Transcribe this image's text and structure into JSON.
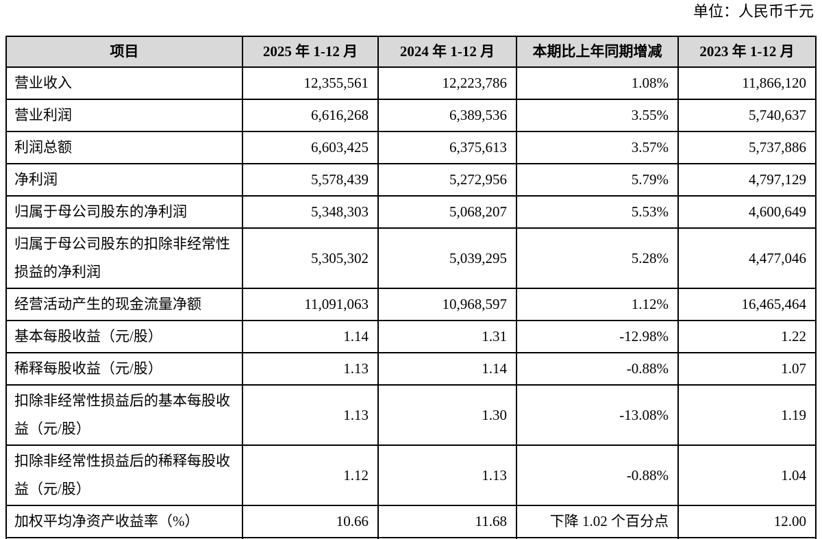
{
  "unit_label": "单位：人民币千元",
  "colors": {
    "header_bg": "#d9d9d9",
    "border": "#000000",
    "text": "#000000"
  },
  "table": {
    "headers": {
      "item": "项目",
      "y2025": "2025 年 1-12 月",
      "y2024": "2024 年 1-12 月",
      "change": "本期比上年同期增减",
      "y2023": "2023 年 1-12 月"
    },
    "rows": [
      {
        "item": "营业收入",
        "y2025": "12,355,561",
        "y2024": "12,223,786",
        "change": "1.08%",
        "y2023": "11,866,120"
      },
      {
        "item": "营业利润",
        "y2025": "6,616,268",
        "y2024": "6,389,536",
        "change": "3.55%",
        "y2023": "5,740,637"
      },
      {
        "item": "利润总额",
        "y2025": "6,603,425",
        "y2024": "6,375,613",
        "change": "3.57%",
        "y2023": "5,737,886"
      },
      {
        "item": "净利润",
        "y2025": "5,578,439",
        "y2024": "5,272,956",
        "change": "5.79%",
        "y2023": "4,797,129"
      },
      {
        "item": "归属于母公司股东的净利润",
        "y2025": "5,348,303",
        "y2024": "5,068,207",
        "change": "5.53%",
        "y2023": "4,600,649"
      },
      {
        "item": "归属于母公司股东的扣除非经常性损益的净利润",
        "y2025": "5,305,302",
        "y2024": "5,039,295",
        "change": "5.28%",
        "y2023": "4,477,046"
      },
      {
        "item": "经营活动产生的现金流量净额",
        "y2025": "11,091,063",
        "y2024": "10,968,597",
        "change": "1.12%",
        "y2023": "16,465,464"
      },
      {
        "item": "基本每股收益（元/股）",
        "y2025": "1.14",
        "y2024": "1.31",
        "change": "-12.98%",
        "y2023": "1.22"
      },
      {
        "item": "稀释每股收益（元/股）",
        "y2025": "1.13",
        "y2024": "1.14",
        "change": "-0.88%",
        "y2023": "1.07"
      },
      {
        "item": "扣除非经常性损益后的基本每股收益（元/股）",
        "y2025": "1.13",
        "y2024": "1.30",
        "change": "-13.08%",
        "y2023": "1.19"
      },
      {
        "item": "扣除非经常性损益后的稀释每股收益（元/股）",
        "y2025": "1.12",
        "y2024": "1.13",
        "change": "-0.88%",
        "y2023": "1.04"
      },
      {
        "item": "加权平均净资产收益率（%）",
        "y2025": "10.66",
        "y2024": "11.68",
        "change": "下降 1.02 个百分点",
        "y2023": "12.00"
      }
    ]
  }
}
